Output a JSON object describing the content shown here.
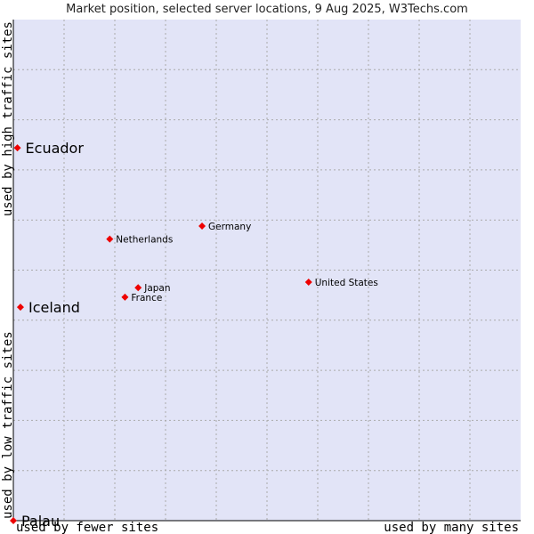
{
  "chart_data": {
    "type": "scatter",
    "title": "Market position, selected server locations, 9 Aug 2025, W3Techs.com",
    "xlabel_left": "used by fewer sites",
    "xlabel_right": "used by many sites",
    "ylabel_bottom": "used by low traffic sites",
    "ylabel_top": "used by high traffic sites",
    "xlim": [
      0,
      100
    ],
    "ylim": [
      0,
      100
    ],
    "grid": true,
    "colors": {
      "plot_background": "#e2e4f7",
      "grid": "#aaaaaa",
      "marker": "#ee0000",
      "axis": "#000000"
    },
    "points": [
      {
        "name": "Ecuador",
        "x": 0.8,
        "y": 74.4,
        "label_size": "large"
      },
      {
        "name": "Iceland",
        "x": 1.4,
        "y": 42.6,
        "label_size": "large"
      },
      {
        "name": "Palau",
        "x": 0.0,
        "y": 0.0,
        "label_size": "large"
      },
      {
        "name": "Netherlands",
        "x": 19.0,
        "y": 56.2,
        "label_size": "small"
      },
      {
        "name": "Germany",
        "x": 37.2,
        "y": 58.8,
        "label_size": "small"
      },
      {
        "name": "Japan",
        "x": 24.6,
        "y": 46.5,
        "label_size": "small"
      },
      {
        "name": "France",
        "x": 22.0,
        "y": 44.6,
        "label_size": "small"
      },
      {
        "name": "United States",
        "x": 58.2,
        "y": 47.6,
        "label_size": "small"
      }
    ]
  }
}
